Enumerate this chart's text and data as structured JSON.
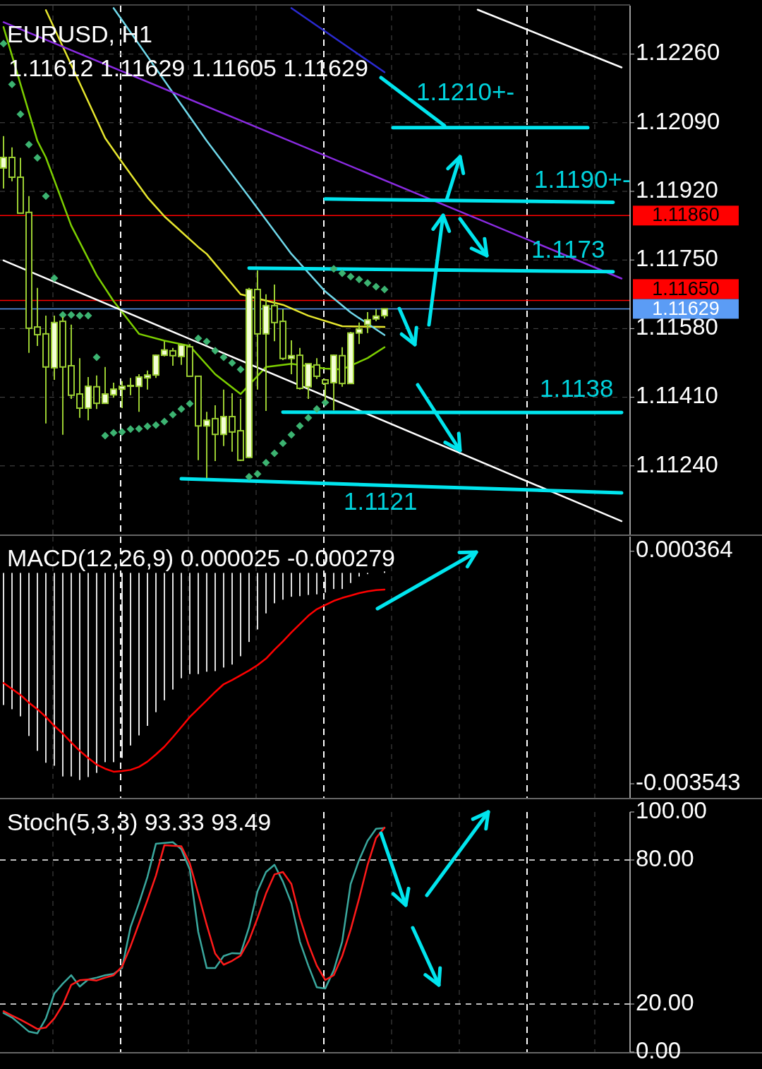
{
  "chart_data": [
    {
      "type": "candlestick",
      "title": "EURUSD, H1",
      "subtitle": "1.11612 1.11629 1.11605 1.11629",
      "color": "#9acd32",
      "categories": [
        null,
        null,
        null,
        null,
        null,
        null,
        null,
        null,
        null,
        null,
        null,
        null,
        null,
        null,
        null,
        null,
        null,
        null,
        null,
        null,
        null,
        null,
        null,
        null,
        null,
        null,
        null,
        null,
        null,
        null,
        null,
        null,
        null,
        null,
        null,
        null,
        null,
        null,
        null,
        null,
        null,
        null,
        null,
        null,
        null,
        null,
        null,
        null,
        null,
        null,
        null,
        null,
        null,
        null,
        null,
        null,
        null,
        null,
        null,
        null,
        null,
        null,
        null,
        null,
        null,
        null,
        null,
        null,
        null,
        null,
        null,
        null,
        null,
        null
      ],
      "ohlc": [
        [
          1.11978,
          1.12057,
          1.11927,
          1.12004
        ],
        [
          1.12004,
          1.12029,
          1.11945,
          1.11955
        ],
        [
          1.11955,
          1.12003,
          1.11866,
          1.11866
        ],
        [
          1.11868,
          1.11908,
          1.1152,
          1.11581
        ],
        [
          1.11584,
          1.11681,
          1.11537,
          1.11565
        ],
        [
          1.11567,
          1.11612,
          1.11345,
          1.11485
        ],
        [
          1.11483,
          1.11612,
          1.11453,
          1.11595
        ],
        [
          1.11598,
          1.11609,
          1.11317,
          1.11485
        ],
        [
          1.11488,
          1.1159,
          1.11406,
          1.11415
        ],
        [
          1.11418,
          1.11507,
          1.11359,
          1.11383
        ],
        [
          1.11383,
          1.1146,
          1.11353,
          1.11437
        ],
        [
          1.11436,
          1.11464,
          1.11381,
          1.11395
        ],
        [
          1.11395,
          1.11485,
          1.11394,
          1.11418
        ],
        [
          1.11416,
          1.11446,
          1.11409,
          1.1143
        ],
        [
          1.1143,
          1.1145,
          1.11383,
          1.11437
        ],
        [
          1.11439,
          1.11458,
          1.11415,
          1.11439
        ],
        [
          1.11437,
          1.11467,
          1.11374,
          1.1146
        ],
        [
          1.11458,
          1.11476,
          1.11429,
          1.11465
        ],
        [
          1.11465,
          1.11516,
          1.11458,
          1.11514
        ],
        [
          1.11514,
          1.11549,
          1.11511,
          1.11527
        ],
        [
          1.11525,
          1.11532,
          1.11488,
          1.11513
        ],
        [
          1.11511,
          1.11542,
          1.1149,
          1.11539
        ],
        [
          1.11535,
          1.11542,
          1.11462,
          1.11462
        ],
        [
          1.11462,
          1.11462,
          1.11254,
          1.11339
        ],
        [
          1.11339,
          1.11374,
          1.1121,
          1.11353
        ],
        [
          1.11357,
          1.1139,
          1.11252,
          1.11318
        ],
        [
          1.11318,
          1.11429,
          1.11289,
          1.11362
        ],
        [
          1.11362,
          1.1142,
          1.11275,
          1.11324
        ],
        [
          1.11327,
          1.11406,
          1.11252,
          1.11254
        ],
        [
          1.11261,
          1.11681,
          1.11259,
          1.11677
        ],
        [
          1.11677,
          1.11724,
          1.11429,
          1.11567
        ],
        [
          1.11567,
          1.11665,
          1.11376,
          1.11637
        ],
        [
          1.11637,
          1.11689,
          1.11549,
          1.11595
        ],
        [
          1.11598,
          1.11628,
          1.11502,
          1.11506
        ],
        [
          1.11506,
          1.11551,
          1.11467,
          1.11513
        ],
        [
          1.11514,
          1.11532,
          1.11429,
          1.11432
        ],
        [
          1.11436,
          1.11493,
          1.11406,
          1.11493
        ],
        [
          1.1149,
          1.11507,
          1.11455,
          1.11462
        ],
        [
          1.11453,
          1.11455,
          1.11402,
          1.11444
        ],
        [
          1.11446,
          1.11516,
          1.11378,
          1.11514
        ],
        [
          1.11513,
          1.11534,
          1.11436,
          1.11444
        ],
        [
          1.11444,
          1.11572,
          1.11444,
          1.11569
        ],
        [
          1.11569,
          1.11595,
          1.11542,
          1.11579
        ],
        [
          1.1159,
          1.11621,
          1.11569,
          1.11602
        ],
        [
          1.11604,
          1.11628,
          1.11598,
          1.11611
        ],
        [
          1.11612,
          1.11629,
          1.11605,
          1.11629
        ],
        null,
        null,
        null,
        null,
        null,
        null,
        null,
        null,
        null,
        null,
        null,
        null,
        null,
        null,
        null,
        null,
        null,
        null,
        null,
        null,
        null,
        null,
        null,
        null,
        null,
        null,
        null,
        null
      ],
      "ylim": [
        1.1107,
        1.1238
      ],
      "yticks": [
        {
          "value": 1.1226,
          "label": "1.12260"
        },
        {
          "value": 1.1209,
          "label": "1.12090"
        },
        {
          "value": 1.1192,
          "label": "1.11920"
        },
        {
          "value": 1.1175,
          "label": "1.11750"
        },
        {
          "value": 1.1158,
          "label": "1.11580"
        },
        {
          "value": 1.1141,
          "label": "1.11410"
        },
        {
          "value": 1.1124,
          "label": "1.11240"
        }
      ],
      "tick_labels": "y",
      "grid": true,
      "ref_lines": [
        {
          "axis": "y",
          "value": 1.1186,
          "label": "1.11860",
          "color": "#ff0000"
        },
        {
          "axis": "y",
          "value": 1.1165,
          "label": "1.11650",
          "color": "#ff0000"
        },
        {
          "axis": "y",
          "value": 1.11629,
          "label": "1.11629",
          "color": "#5b9cf5"
        }
      ],
      "series": [
        {
          "type": "line",
          "color": "#7ccf00",
          "values": [
            1.12327,
            null,
            null,
            null,
            1.12045,
            1.12004,
            null,
            null,
            1.11835,
            null,
            null,
            1.11712,
            null,
            1.11648,
            null,
            null,
            1.11567,
            null,
            null,
            1.1155,
            null,
            null,
            1.11537,
            null,
            null,
            1.11467,
            null,
            null,
            1.11418,
            null,
            null,
            1.11485,
            null,
            null,
            1.11493,
            null,
            null,
            null,
            1.11481,
            null,
            1.11479,
            null,
            null,
            1.11507,
            null,
            1.11534,
            null,
            null,
            null,
            null,
            null,
            null,
            null,
            null,
            null,
            null,
            null,
            null,
            null,
            null,
            null,
            null,
            null,
            null,
            null,
            null,
            null,
            null,
            null,
            null,
            null,
            null,
            null,
            null
          ]
        },
        {
          "type": "line",
          "color": "#e6e62e",
          "values": [
            null,
            null,
            null,
            null,
            null,
            1.12369,
            null,
            null,
            null,
            null,
            null,
            null,
            1.12052,
            null,
            1.11992,
            null,
            null,
            1.11905,
            null,
            1.11858,
            null,
            null,
            null,
            1.11782,
            1.11765,
            null,
            null,
            null,
            1.11665,
            null,
            null,
            null,
            null,
            1.11639,
            null,
            null,
            1.11612,
            null,
            null,
            null,
            1.11586,
            null,
            null,
            null,
            null,
            1.11584,
            null,
            null,
            null,
            null,
            null,
            null,
            null,
            null,
            null,
            null,
            null,
            null,
            null,
            null,
            null,
            null,
            null,
            null,
            null,
            null,
            null,
            null,
            null,
            null,
            null,
            null,
            null,
            null
          ]
        },
        {
          "type": "line",
          "color": "#6fd8ea",
          "values": [
            null,
            null,
            null,
            null,
            null,
            null,
            null,
            null,
            null,
            null,
            null,
            null,
            null,
            1.12374,
            null,
            null,
            null,
            null,
            null,
            null,
            null,
            null,
            null,
            null,
            1.12045,
            null,
            null,
            null,
            null,
            1.11906,
            null,
            null,
            null,
            null,
            1.11765,
            null,
            null,
            null,
            1.11672,
            null,
            null,
            1.1162,
            null,
            null,
            null,
            1.11564,
            null,
            null,
            null,
            null,
            null,
            null,
            null,
            null,
            null,
            null,
            null,
            null,
            null,
            null,
            null,
            null,
            null,
            null,
            null,
            null,
            null,
            null,
            null,
            null,
            null,
            null,
            null,
            null
          ]
        },
        {
          "type": "line",
          "color": "#2a2ad0",
          "values": [
            null,
            null,
            null,
            null,
            null,
            null,
            null,
            null,
            null,
            null,
            null,
            null,
            null,
            null,
            null,
            null,
            null,
            null,
            null,
            null,
            null,
            null,
            null,
            null,
            null,
            null,
            null,
            null,
            null,
            null,
            null,
            null,
            null,
            null,
            1.12374,
            null,
            null,
            null,
            null,
            null,
            null,
            null,
            null,
            null,
            null,
            1.12215,
            null,
            null,
            null,
            null,
            null,
            null,
            null,
            null,
            null,
            null,
            null,
            null,
            null,
            null,
            null,
            null,
            null,
            null,
            null,
            null,
            null,
            null,
            null,
            null,
            null,
            null,
            null,
            null
          ]
        },
        {
          "type": "line",
          "color": "#8a2be2",
          "values": [
            1.12339,
            null,
            null,
            null,
            null,
            null,
            null,
            null,
            null,
            null,
            null,
            null,
            null,
            null,
            null,
            null,
            null,
            null,
            null,
            null,
            null,
            null,
            null,
            null,
            null,
            null,
            null,
            null,
            null,
            null,
            null,
            null,
            null,
            null,
            null,
            null,
            null,
            null,
            null,
            null,
            null,
            null,
            null,
            null,
            null,
            null,
            null,
            null,
            null,
            null,
            null,
            null,
            null,
            null,
            null,
            null,
            null,
            null,
            null,
            null,
            null,
            null,
            null,
            null,
            null,
            null,
            null,
            null,
            null,
            null,
            null,
            null,
            null,
            1.11704
          ]
        },
        {
          "type": "line",
          "color": "#ffffff",
          "values": [
            1.11749,
            null,
            null,
            null,
            null,
            null,
            null,
            null,
            null,
            null,
            null,
            null,
            null,
            null,
            null,
            null,
            null,
            null,
            null,
            null,
            null,
            null,
            null,
            null,
            null,
            null,
            null,
            null,
            null,
            null,
            null,
            null,
            null,
            null,
            null,
            null,
            null,
            null,
            null,
            null,
            null,
            null,
            null,
            null,
            null,
            null,
            null,
            null,
            null,
            null,
            null,
            null,
            null,
            null,
            null,
            null,
            null,
            null,
            null,
            null,
            null,
            null,
            null,
            null,
            null,
            null,
            null,
            null,
            null,
            null,
            null,
            null,
            null,
            1.11103
          ]
        },
        {
          "type": "line",
          "color": "#ffffff",
          "values": [
            null,
            null,
            null,
            null,
            null,
            null,
            null,
            null,
            null,
            null,
            null,
            null,
            null,
            null,
            null,
            null,
            null,
            null,
            null,
            null,
            null,
            null,
            null,
            null,
            null,
            null,
            null,
            null,
            null,
            null,
            null,
            null,
            null,
            null,
            null,
            null,
            null,
            null,
            null,
            null,
            null,
            null,
            null,
            null,
            null,
            null,
            null,
            null,
            null,
            null,
            null,
            null,
            null,
            null,
            null,
            null,
            1.1237,
            null,
            null,
            null,
            null,
            null,
            null,
            null,
            null,
            null,
            null,
            null,
            null,
            null,
            null,
            null,
            null,
            1.12227
          ]
        },
        {
          "type": "scatter",
          "marker": "diamond",
          "color": "#3cb371",
          "values": [
            1.12286,
            1.12185,
            1.12111,
            1.12036,
            1.12003,
            1.11908,
            1.11705,
            1.11614,
            1.11614,
            1.11612,
            1.11612,
            1.11509,
            1.11315,
            1.11322,
            1.11324,
            1.11331,
            1.11332,
            1.11338,
            1.11341,
            1.1135,
            1.11367,
            1.11381,
            1.11394,
            1.11556,
            1.11548,
            1.11525,
            1.11509,
            1.11495,
            1.11479,
            1.11213,
            1.1122,
            1.11248,
            1.11271,
            1.11296,
            1.11317,
            1.11339,
            1.11359,
            1.11381,
            1.11397,
            1.11728,
            1.11717,
            1.11709,
            1.11702,
            1.11693,
            1.11684,
            1.11677,
            null,
            null,
            null,
            null,
            null,
            null,
            null,
            null,
            null,
            null,
            null,
            null,
            null,
            null,
            null,
            null,
            null,
            null,
            null,
            null,
            null,
            null,
            null,
            null,
            null,
            null,
            null,
            null
          ]
        },
        {
          "type": "line",
          "color": "#00e5ee",
          "values": [
            null,
            null,
            null,
            null,
            null,
            null,
            null,
            null,
            null,
            null,
            null,
            null,
            null,
            null,
            null,
            null,
            null,
            null,
            null,
            null,
            null,
            null,
            null,
            null,
            null,
            null,
            null,
            null,
            null,
            null,
            null,
            null,
            null,
            null,
            null,
            null,
            null,
            null,
            null,
            null,
            null,
            null,
            null,
            null,
            null,
            null,
            1.12078,
            null,
            null,
            null,
            null,
            null,
            null,
            null,
            null,
            null,
            null,
            null,
            null,
            null,
            null,
            null,
            null,
            null,
            null,
            null,
            null,
            null,
            null,
            1.12078,
            null,
            null,
            null,
            null
          ]
        },
        {
          "type": "line",
          "color": "#00e5ee",
          "values": [
            null,
            null,
            null,
            null,
            null,
            null,
            null,
            null,
            null,
            null,
            null,
            null,
            null,
            null,
            null,
            null,
            null,
            null,
            null,
            null,
            null,
            null,
            null,
            null,
            null,
            null,
            null,
            null,
            null,
            null,
            null,
            null,
            null,
            null,
            null,
            null,
            null,
            null,
            1.11901,
            null,
            null,
            null,
            null,
            null,
            null,
            null,
            null,
            null,
            null,
            null,
            null,
            null,
            null,
            null,
            null,
            null,
            null,
            null,
            null,
            null,
            null,
            null,
            null,
            null,
            null,
            null,
            null,
            null,
            null,
            null,
            null,
            null,
            1.11893,
            null
          ]
        },
        {
          "type": "line",
          "color": "#00e5ee",
          "values": [
            null,
            null,
            null,
            null,
            null,
            null,
            null,
            null,
            null,
            null,
            null,
            null,
            null,
            null,
            null,
            null,
            null,
            null,
            null,
            null,
            null,
            null,
            null,
            null,
            null,
            null,
            null,
            null,
            null,
            1.1173,
            null,
            null,
            null,
            null,
            null,
            null,
            null,
            null,
            null,
            null,
            null,
            null,
            null,
            null,
            null,
            null,
            null,
            null,
            null,
            null,
            null,
            null,
            null,
            null,
            null,
            null,
            null,
            null,
            null,
            null,
            null,
            null,
            null,
            null,
            null,
            null,
            null,
            null,
            null,
            null,
            null,
            null,
            1.11721,
            null
          ]
        },
        {
          "type": "line",
          "color": "#00e5ee",
          "values": [
            null,
            null,
            null,
            null,
            null,
            null,
            null,
            null,
            null,
            null,
            null,
            null,
            null,
            null,
            null,
            null,
            null,
            null,
            null,
            null,
            null,
            null,
            null,
            null,
            null,
            null,
            null,
            null,
            null,
            null,
            null,
            null,
            null,
            1.11373,
            null,
            null,
            null,
            null,
            null,
            null,
            null,
            null,
            null,
            null,
            null,
            null,
            null,
            null,
            null,
            null,
            null,
            null,
            null,
            null,
            null,
            null,
            null,
            null,
            null,
            null,
            null,
            null,
            null,
            null,
            null,
            null,
            null,
            null,
            null,
            null,
            null,
            null,
            null,
            1.11372
          ]
        },
        {
          "type": "line",
          "color": "#00e5ee",
          "values": [
            null,
            null,
            null,
            null,
            null,
            null,
            null,
            null,
            null,
            null,
            null,
            null,
            null,
            null,
            null,
            null,
            null,
            null,
            null,
            null,
            null,
            1.11208,
            null,
            null,
            null,
            null,
            null,
            null,
            null,
            null,
            null,
            null,
            null,
            null,
            null,
            null,
            null,
            null,
            null,
            null,
            null,
            null,
            null,
            null,
            null,
            null,
            null,
            null,
            null,
            null,
            null,
            null,
            null,
            null,
            null,
            null,
            null,
            null,
            null,
            null,
            null,
            null,
            null,
            null,
            null,
            null,
            null,
            null,
            null,
            null,
            null,
            null,
            null,
            1.11173
          ]
        }
      ],
      "annotations": [
        "1.1210+-",
        "1.1190+-",
        "1.1173",
        "1.1138",
        "1.1121"
      ]
    },
    {
      "type": "bar",
      "title": "MACD(12,26,9) 0.000025 -0.000279",
      "ylim": [
        -0.00378,
        0.00061
      ],
      "categories": [
        null,
        null,
        null,
        null,
        null,
        null,
        null,
        null,
        null,
        null,
        null,
        null,
        null,
        null,
        null,
        null,
        null,
        null,
        null,
        null,
        null,
        null,
        null,
        null,
        null,
        null,
        null,
        null,
        null,
        null,
        null,
        null,
        null,
        null,
        null,
        null,
        null,
        null,
        null,
        null,
        null,
        null,
        null,
        null,
        null,
        null,
        null,
        null,
        null,
        null,
        null,
        null,
        null,
        null,
        null,
        null,
        null,
        null,
        null,
        null,
        null,
        null,
        null,
        null,
        null,
        null,
        null,
        null,
        null,
        null,
        null,
        null,
        null,
        null
      ],
      "yticks": [
        {
          "value": 0.000364,
          "label": "0.000364"
        },
        {
          "value": -0.003543,
          "label": "-0.003543"
        }
      ],
      "tick_labels": "y",
      "grid": "x",
      "series": [
        {
          "type": "bar",
          "color": "#e0e0e0",
          "values": [
            -0.00222,
            -0.00229,
            -0.00241,
            -0.00274,
            -0.00299,
            -0.00319,
            -0.00324,
            -0.00342,
            -0.00342,
            -0.00348,
            -0.00343,
            -0.00336,
            -0.00318,
            -0.00318,
            -0.00311,
            -0.0029,
            -0.00273,
            -0.00257,
            -0.00234,
            -0.00214,
            -0.00196,
            -0.00177,
            -0.0017,
            -0.0017,
            -0.00166,
            -0.00165,
            -0.00159,
            -0.00154,
            -0.0014,
            -0.00116,
            -0.00095,
            -0.00068,
            -0.00051,
            -0.00045,
            -0.0004,
            -0.00039,
            -0.00037,
            -0.00036,
            -0.00033,
            -0.00027,
            -0.00027,
            -0.00017,
            -6e-05,
            -2e-05,
            null,
            2.5e-05,
            null,
            null,
            null,
            null,
            null,
            null,
            null,
            null,
            null,
            null,
            null,
            null,
            null,
            null,
            null,
            null,
            null,
            null,
            null,
            null,
            null,
            null,
            null,
            null,
            null,
            null,
            null,
            null
          ]
        },
        {
          "type": "line",
          "color": "#ff0000",
          "values": [
            -0.00185,
            -0.00195,
            -0.00205,
            -0.00218,
            -0.00229,
            -0.00242,
            -0.00257,
            -0.0027,
            -0.00285,
            -0.00299,
            -0.00311,
            -0.00322,
            -0.00329,
            -0.00334,
            -0.00333,
            -0.00331,
            -0.00326,
            -0.00317,
            -0.00305,
            -0.00292,
            -0.00276,
            -0.00259,
            -0.00242,
            -0.00228,
            -0.00214,
            -0.002,
            -0.00187,
            -0.0018,
            -0.00172,
            -0.00164,
            -0.00155,
            -0.00144,
            -0.00129,
            -0.00115,
            -0.001,
            -0.00086,
            -0.00072,
            -0.00061,
            -0.00054,
            -0.00047,
            -0.00042,
            -0.00038,
            -0.00034,
            -0.00031,
            -0.00029,
            -0.000279,
            null,
            null,
            null,
            null,
            null,
            null,
            null,
            null,
            null,
            null,
            null,
            null,
            null,
            null,
            null,
            null,
            null,
            null,
            null,
            null,
            null,
            null,
            null,
            null,
            null,
            null,
            null,
            null
          ]
        }
      ]
    },
    {
      "type": "line",
      "title": "Stoch(5,3,3) 93.33 93.49",
      "ylim": [
        0,
        100
      ],
      "categories": [
        null,
        null,
        null,
        null,
        null,
        null,
        null,
        null,
        null,
        null,
        null,
        null,
        null,
        null,
        null,
        null,
        null,
        null,
        null,
        null,
        null,
        null,
        null,
        null,
        null,
        null,
        null,
        null,
        null,
        null,
        null,
        null,
        null,
        null,
        null,
        null,
        null,
        null,
        null,
        null,
        null,
        null,
        null,
        null,
        null,
        null,
        null,
        null,
        null,
        null,
        null,
        null,
        null,
        null,
        null,
        null,
        null,
        null,
        null,
        null,
        null,
        null,
        null,
        null,
        null,
        null,
        null,
        null,
        null,
        null,
        null,
        null,
        null,
        null
      ],
      "yticks": [
        {
          "value": 100,
          "label": "100.00"
        },
        {
          "value": 80,
          "label": "80.00"
        },
        {
          "value": 20,
          "label": "20.00"
        },
        {
          "value": 0,
          "label": "0.00"
        }
      ],
      "tick_labels": "y",
      "grid": "x",
      "ref_lines": [
        {
          "axis": "y",
          "value": 80,
          "color": "#ffffff",
          "line_style": "dashed"
        },
        {
          "axis": "y",
          "value": 20,
          "color": "#ffffff",
          "line_style": "dashed"
        }
      ],
      "series": [
        {
          "type": "line",
          "color": "#3aa89e",
          "values": [
            16.3,
            14.4,
            11.5,
            8.5,
            7.8,
            14,
            24.4,
            28.5,
            32,
            27.3,
            30.2,
            31,
            32,
            32.6,
            35,
            52,
            62,
            73,
            86.8,
            null,
            87.4,
            84.5,
            76,
            50,
            35,
            35,
            40,
            41.2,
            41,
            52,
            67,
            75,
            78,
            71,
            62,
            46,
            36,
            27,
            26.5,
            34,
            46,
            70,
            80,
            88,
            93,
            93.33,
            null,
            null,
            null,
            null,
            null,
            null,
            null,
            null,
            null,
            null,
            null,
            null,
            null,
            null,
            null,
            null,
            null,
            null,
            null,
            null,
            null,
            null,
            null,
            null,
            null,
            null,
            null,
            null
          ]
        },
        {
          "type": "line",
          "color": "#ff1a1a",
          "values": [
            17,
            15.2,
            13.5,
            11.6,
            9.6,
            10.2,
            14,
            19.7,
            28,
            29.9,
            30.2,
            29.8,
            31,
            32,
            35.6,
            44,
            53.6,
            63.3,
            73.5,
            86.2,
            null,
            85.7,
            78.6,
            66,
            53,
            41,
            36.4,
            38,
            40.2,
            46.5,
            55.8,
            66,
            74,
            75,
            70,
            56,
            45,
            36,
            30,
            32,
            40,
            51,
            64,
            78,
            89.2,
            93.49,
            null,
            null,
            null,
            null,
            null,
            null,
            null,
            null,
            null,
            null,
            null,
            null,
            null,
            null,
            null,
            null,
            null,
            null,
            null,
            null,
            null,
            null,
            null,
            null,
            null,
            null,
            null,
            null
          ]
        }
      ]
    }
  ]
}
